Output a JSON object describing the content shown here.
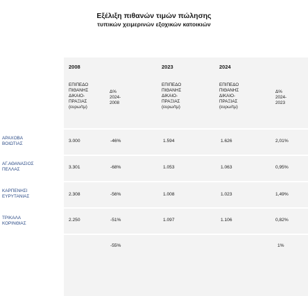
{
  "title": "Εξέλιξη πιθανών τιμών πώλησης",
  "subtitle": "τυπικών χειμερινών εξοχικών κατοικιών",
  "years": {
    "y2008": "2008",
    "y2023": "2023",
    "y2024": "2024"
  },
  "headers": {
    "price_2008": [
      "ΕΠΙΠΕΔΟ",
      "ΠΙΘΑΝΗΣ",
      "ΔΙΚΑΙΟ-",
      "ΠΡΑΞΙΑΣ",
      "(ευρω/τμ)"
    ],
    "change_2024_2008": [
      "Δ%",
      "2024-",
      "2008"
    ],
    "price_2023": [
      "ΕΠΙΠΕΔΟ",
      "ΠΙΘΑΝΗΣ",
      "ΔΙΚΑΙΟ-",
      "ΠΡΑΞΙΑΣ",
      "(ευρω/τμ)"
    ],
    "price_2024": [
      "ΕΠΙΠΕΔΟ",
      "ΠΙΘΑΝΗΣ",
      "ΔΙΚΑΙΟ-",
      "ΠΡΑΞΙΑΣ",
      "(ευρω/τμ)"
    ],
    "change_2024_2023": [
      "Δ%",
      "2024-",
      "2023"
    ]
  },
  "rows": [
    {
      "region": [
        "ΑΡΑΧΟΒΑ",
        "ΒΟΙΩΤΙΑΣ"
      ],
      "p2008": "3.000",
      "d0824": "-46%",
      "p2023": "1.594",
      "p2024": "1.626",
      "d2324": "2,01%"
    },
    {
      "region": [
        "ΑΓ.ΑΘΑΝΑΣΙΟΣ",
        "ΠΕΛΛΑΣ"
      ],
      "p2008": "3.301",
      "d0824": "-68%",
      "p2023": "1.053",
      "p2024": "1.063",
      "d2324": "0,95%"
    },
    {
      "region": [
        "ΚΑΡΠΕΝΗΣΙ",
        "ΕΥΡΥΤΑΝΙΑΣ"
      ],
      "p2008": "2.308",
      "d0824": "-56%",
      "p2023": "1.008",
      "p2024": "1.023",
      "d2324": "1,49%"
    },
    {
      "region": [
        "ΤΡΙΚΑΛΑ",
        "ΚΟΡΙΝΘΙΑΣ"
      ],
      "p2008": "2.250",
      "d0824": "-51%",
      "p2023": "1.097",
      "p2024": "1.106",
      "d2324": "0,82%"
    }
  ],
  "totals": {
    "d0824": "-55%",
    "d2324": "1%"
  }
}
